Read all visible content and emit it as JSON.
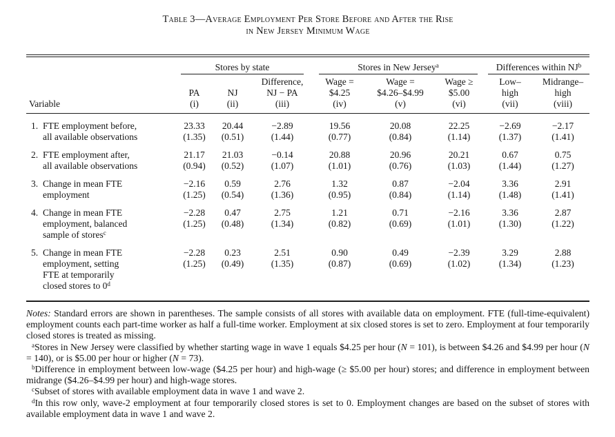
{
  "theme": {
    "background": "#ffffff",
    "text": "#161616",
    "rule_color": "#1d1d1d"
  },
  "title": {
    "line1": "Table 3—Average Employment Per Store Before and After the Rise",
    "line2": "in New Jersey Minimum Wage"
  },
  "table": {
    "variable_header": "Variable",
    "groups": [
      {
        "id": "stores-by-state",
        "label": "Stores by state",
        "sup": "",
        "span": 3
      },
      {
        "id": "stores-in-new-jersey",
        "label": "Stores in New Jersey",
        "sup": "a",
        "span": 3
      },
      {
        "id": "differences-within-nj",
        "label": "Differences within NJ",
        "sup": "b",
        "span": 2
      }
    ],
    "columns": [
      {
        "id": "pa",
        "lines": [
          "PA"
        ],
        "num": "(i)"
      },
      {
        "id": "nj",
        "lines": [
          "NJ"
        ],
        "num": "(ii)"
      },
      {
        "id": "difference-nj-pa",
        "lines": [
          "Difference,",
          "NJ − PA"
        ],
        "num": "(iii)"
      },
      {
        "id": "wage-425",
        "lines": [
          "Wage =",
          "$4.25"
        ],
        "num": "(iv)"
      },
      {
        "id": "wage-426-499",
        "lines": [
          "Wage =",
          "$4.26–$4.99"
        ],
        "num": "(v)"
      },
      {
        "id": "wage-500-plus",
        "lines": [
          "Wage ≥",
          "$5.00"
        ],
        "num": "(vi)"
      },
      {
        "id": "low-high",
        "lines": [
          "Low–",
          "high"
        ],
        "num": "(vii)"
      },
      {
        "id": "midrange-high",
        "lines": [
          "Midrange–",
          "high"
        ],
        "num": "(viii)"
      }
    ],
    "rows": [
      {
        "num": "1.",
        "lines": [
          {
            "t": "FTE employment before,",
            "sup": ""
          },
          {
            "t": "all available observations",
            "sup": ""
          }
        ],
        "values": [
          "23.33",
          "20.44",
          "−2.89",
          "19.56",
          "20.08",
          "22.25",
          "−2.69",
          "−2.17"
        ],
        "se": [
          "(1.35)",
          "(0.51)",
          "(1.44)",
          "(0.77)",
          "(0.84)",
          "(1.14)",
          "(1.37)",
          "(1.41)"
        ]
      },
      {
        "num": "2.",
        "lines": [
          {
            "t": "FTE employment after,",
            "sup": ""
          },
          {
            "t": "all available observations",
            "sup": ""
          }
        ],
        "values": [
          "21.17",
          "21.03",
          "−0.14",
          "20.88",
          "20.96",
          "20.21",
          "0.67",
          "0.75"
        ],
        "se": [
          "(0.94)",
          "(0.52)",
          "(1.07)",
          "(1.01)",
          "(0.76)",
          "(1.03)",
          "(1.44)",
          "(1.27)"
        ]
      },
      {
        "num": "3.",
        "lines": [
          {
            "t": "Change in mean FTE",
            "sup": ""
          },
          {
            "t": "employment",
            "sup": ""
          }
        ],
        "values": [
          "−2.16",
          "0.59",
          "2.76",
          "1.32",
          "0.87",
          "−2.04",
          "3.36",
          "2.91"
        ],
        "se": [
          "(1.25)",
          "(0.54)",
          "(1.36)",
          "(0.95)",
          "(0.84)",
          "(1.14)",
          "(1.48)",
          "(1.41)"
        ]
      },
      {
        "num": "4.",
        "lines": [
          {
            "t": "Change in mean FTE",
            "sup": ""
          },
          {
            "t": "employment, balanced",
            "sup": ""
          },
          {
            "t": "sample of stores",
            "sup": "c"
          }
        ],
        "values": [
          "−2.28",
          "0.47",
          "2.75",
          "1.21",
          "0.71",
          "−2.16",
          "3.36",
          "2.87"
        ],
        "se": [
          "(1.25)",
          "(0.48)",
          "(1.34)",
          "(0.82)",
          "(0.69)",
          "(1.01)",
          "(1.30)",
          "(1.22)"
        ]
      },
      {
        "num": "5.",
        "lines": [
          {
            "t": "Change in mean FTE",
            "sup": ""
          },
          {
            "t": "employment, setting",
            "sup": ""
          },
          {
            "t": "FTE at temporarily",
            "sup": ""
          },
          {
            "t": "closed stores to 0",
            "sup": "d"
          }
        ],
        "values": [
          "−2.28",
          "0.23",
          "2.51",
          "0.90",
          "0.49",
          "−2.39",
          "3.29",
          "2.88"
        ],
        "se": [
          "(1.25)",
          "(0.49)",
          "(1.35)",
          "(0.87)",
          "(0.69)",
          "(1.02)",
          "(1.34)",
          "(1.23)"
        ]
      }
    ]
  },
  "notes": {
    "paragraphs": [
      {
        "marker": "",
        "segments": [
          {
            "t": "Notes:",
            "i": true
          },
          {
            "t": " Standard errors are shown in parentheses. The sample consists of all stores with available data on employment. FTE (full-time-equivalent) employment counts each part-time worker as half a full-time worker. Employment at six closed stores is set to zero. Employment at four temporarily closed stores is treated as missing.",
            "i": false
          }
        ]
      },
      {
        "marker": "a",
        "segments": [
          {
            "t": "Stores in New Jersey were classified by whether starting wage in wave 1 equals $4.25 per hour (",
            "i": false
          },
          {
            "t": "N",
            "i": true
          },
          {
            "t": " = 101), is between $4.26 and $4.99 per hour (",
            "i": false
          },
          {
            "t": "N",
            "i": true
          },
          {
            "t": " = 140), or is $5.00 per hour or higher (",
            "i": false
          },
          {
            "t": "N",
            "i": true
          },
          {
            "t": " = 73).",
            "i": false
          }
        ]
      },
      {
        "marker": "b",
        "segments": [
          {
            "t": "Difference in employment between low-wage ($4.25 per hour) and high-wage (≥ $5.00 per hour) stores; and difference in employment between midrange ($4.26–$4.99 per hour) and high-wage stores.",
            "i": false
          }
        ]
      },
      {
        "marker": "c",
        "segments": [
          {
            "t": "Subset of stores with available employment data in wave 1 and wave 2.",
            "i": false
          }
        ]
      },
      {
        "marker": "d",
        "segments": [
          {
            "t": "In this row only, wave-2 employment at four temporarily closed stores is set to 0. Employment changes are based on the subset of stores with available employment data in wave 1 and wave 2.",
            "i": false
          }
        ]
      }
    ]
  }
}
